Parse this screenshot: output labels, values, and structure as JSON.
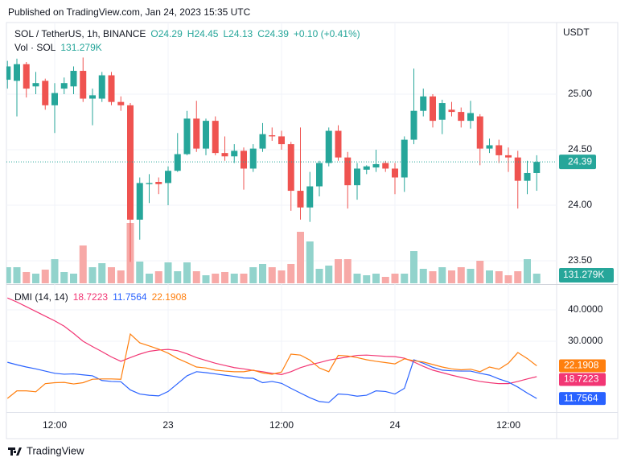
{
  "header": {
    "published": "Published on TradingView.com, Jan 24, 2023 15:35 UTC"
  },
  "footer": {
    "brand": "TradingView"
  },
  "chart_data": [
    {
      "type": "candlestick",
      "title": "SOL / TetherUS, 1h, BINANCE",
      "legend_values": [
        "O24.29",
        "H24.45",
        "L24.13",
        "C24.39",
        "+0.10 (+0.41%)"
      ],
      "y_unit": "USDT",
      "up_color": "#26a69a",
      "down_color": "#ef5350",
      "categories": [
        null,
        null,
        null,
        null,
        null,
        "12:00",
        null,
        null,
        null,
        null,
        null,
        null,
        null,
        null,
        null,
        null,
        null,
        "23",
        null,
        null,
        null,
        null,
        null,
        null,
        null,
        null,
        null,
        null,
        null,
        "12:00",
        null,
        null,
        null,
        null,
        null,
        null,
        null,
        null,
        null,
        null,
        null,
        "24",
        null,
        null,
        null,
        null,
        null,
        null,
        null,
        null,
        null,
        null,
        null,
        "12:00",
        null,
        null,
        null
      ],
      "open": [
        25.13,
        25.12,
        25.27,
        25.07,
        25.12,
        24.9,
        25.05,
        25.07,
        25.21,
        24.96,
        24.96,
        25.17,
        24.93,
        24.9,
        23.87,
        24.19,
        24.21,
        24.2,
        24.31,
        24.46,
        24.78,
        24.51,
        24.76,
        24.47,
        24.44,
        24.49,
        24.33,
        24.51,
        24.63,
        24.62,
        24.55,
        24.13,
        23.98,
        24.17,
        24.38,
        24.67,
        24.43,
        24.18,
        24.32,
        24.34,
        24.38,
        24.33,
        24.25,
        24.59,
        24.85,
        24.98,
        24.77,
        24.86,
        24.84,
        24.76,
        24.8,
        24.51,
        24.54,
        24.45,
        24.43,
        24.22,
        24.29
      ],
      "high": [
        25.3,
        25.32,
        25.29,
        25.2,
        25.14,
        25.1,
        25.15,
        25.25,
        25.33,
        25.05,
        25.2,
        25.2,
        24.98,
        24.92,
        24.25,
        24.28,
        24.25,
        24.35,
        24.65,
        24.85,
        24.94,
        24.78,
        24.8,
        24.62,
        24.55,
        24.52,
        24.55,
        24.74,
        24.7,
        24.67,
        24.57,
        24.7,
        24.3,
        24.4,
        24.7,
        24.72,
        24.48,
        24.38,
        24.36,
        24.5,
        24.4,
        24.38,
        24.62,
        25.23,
        25.05,
        25.0,
        24.95,
        24.93,
        24.88,
        24.94,
        24.82,
        24.6,
        24.59,
        24.52,
        24.49,
        24.4,
        24.45
      ],
      "low": [
        25.05,
        24.8,
        24.97,
        25.0,
        24.86,
        24.65,
        25.0,
        25.0,
        24.93,
        24.72,
        24.93,
        24.9,
        24.85,
        23.49,
        23.69,
        24.02,
        24.1,
        24.0,
        24.3,
        24.45,
        24.48,
        24.45,
        24.45,
        24.4,
        24.38,
        24.14,
        24.3,
        24.48,
        24.58,
        24.5,
        23.95,
        23.87,
        23.85,
        24.08,
        24.35,
        24.4,
        23.97,
        24.05,
        24.28,
        24.3,
        24.3,
        24.1,
        24.12,
        24.55,
        24.8,
        24.7,
        24.64,
        24.8,
        24.7,
        24.69,
        24.36,
        24.47,
        24.38,
        24.3,
        23.97,
        24.1,
        24.13
      ],
      "close": [
        25.25,
        25.27,
        25.05,
        25.1,
        24.9,
        25.01,
        25.1,
        25.21,
        24.96,
        24.99,
        25.17,
        24.93,
        24.9,
        23.87,
        24.2,
        24.2,
        24.19,
        24.31,
        24.46,
        24.78,
        24.51,
        24.76,
        24.47,
        24.44,
        24.49,
        24.33,
        24.51,
        24.64,
        24.62,
        24.55,
        24.13,
        23.98,
        24.17,
        24.38,
        24.67,
        24.43,
        24.18,
        24.33,
        24.35,
        24.37,
        24.33,
        24.25,
        24.59,
        24.85,
        24.98,
        24.76,
        24.92,
        24.84,
        24.76,
        24.83,
        24.51,
        24.54,
        24.45,
        24.43,
        24.22,
        24.29,
        24.39
      ],
      "ylim": [
        23.297,
        25.645
      ],
      "yticks": [
        {
          "value": 25,
          "label": "25.00"
        },
        {
          "value": 24.5,
          "label": "24.50"
        },
        {
          "value": 24,
          "label": "24.00"
        },
        {
          "value": 23.5,
          "label": "23.50"
        }
      ],
      "grid": true,
      "volume": {
        "name": "Vol · SOL",
        "last_value_label": "131.279K",
        "up_color": "#92d3cc",
        "down_color": "#f7a9a7",
        "values": [
          218800,
          218800,
          153200,
          131300,
          186000,
          328200,
          153200,
          131300,
          514200,
          218800,
          273500,
          218800,
          175000,
          820500,
          295400,
          131300,
          164100,
          284400,
          164100,
          284400,
          164100,
          109400,
          131300,
          153200,
          131300,
          131300,
          218800,
          262600,
          218800,
          175000,
          262600,
          700200,
          568900,
          196900,
          240700,
          328200,
          328200,
          131300,
          109400,
          131300,
          87500,
          131300,
          131300,
          437600,
          196900,
          164100,
          218800,
          175000,
          218800,
          196900,
          306300,
          175000,
          164100,
          109400,
          164100,
          328200,
          131279
        ]
      }
    },
    {
      "type": "line",
      "title": "DMI (14, 14)",
      "ylim": [
        7.44,
        47.69
      ],
      "yticks": [
        {
          "value": 40,
          "label": "40.0000"
        },
        {
          "value": 30,
          "label": "30.0000"
        }
      ],
      "series": [
        {
          "color": "#f23674",
          "values": [
            43.8,
            42.5,
            41,
            39.5,
            38,
            36.5,
            34.8,
            32.5,
            30,
            28.3,
            26.7,
            25,
            23.6,
            24.8,
            25.9,
            26.8,
            27.2,
            27.4,
            27,
            26,
            24.8,
            23.9,
            23,
            22.3,
            21.6,
            21.2,
            20.7,
            20.3,
            19.8,
            19.4,
            20.3,
            21.6,
            22.5,
            23.2,
            24,
            24.5,
            25,
            25.5,
            25.6,
            25.4,
            25.2,
            25.1,
            24.6,
            23.4,
            22,
            20.8,
            20,
            19.2,
            18.5,
            17.8,
            17.2,
            16.8,
            16.5,
            16.5,
            17.2,
            18,
            18.7223
          ]
        },
        {
          "color": "#2962ff",
          "values": [
            23.3,
            22.5,
            21.8,
            21.2,
            20.5,
            19.8,
            19.5,
            19.6,
            19.3,
            19,
            17.5,
            17.2,
            17.1,
            14.5,
            13.2,
            12.8,
            12.6,
            14,
            16.5,
            19,
            20.3,
            20,
            19.6,
            19.2,
            18.8,
            18.3,
            18.2,
            16.8,
            17.2,
            16.6,
            15,
            13.5,
            12,
            10.8,
            10.5,
            13.2,
            13,
            12.5,
            12.8,
            14.2,
            14,
            13.2,
            15,
            24.1,
            23,
            21.7,
            20.8,
            20.6,
            20.5,
            20.5,
            19.8,
            19.2,
            18,
            17,
            15.4,
            13.5,
            11.7564
          ]
        },
        {
          "color": "#ff7f0e",
          "values": [
            11.8,
            14.2,
            14.2,
            13.9,
            16.5,
            16.8,
            16.9,
            16.4,
            16.8,
            17.9,
            18,
            18,
            17.9,
            32.3,
            29.5,
            28.5,
            27.5,
            26.2,
            24.5,
            23.2,
            21.8,
            21.5,
            20.8,
            20.5,
            20.3,
            20.3,
            20.8,
            19.9,
            19.5,
            20.2,
            25.9,
            25.6,
            24,
            21.5,
            20.3,
            25.5,
            25.3,
            24.8,
            24.1,
            23.6,
            23.2,
            22.8,
            24.4,
            23.8,
            23.4,
            22.6,
            21.8,
            21.2,
            20.9,
            21.1,
            20.3,
            21.8,
            21.1,
            23,
            26.4,
            24.5,
            22.1908
          ]
        }
      ]
    }
  ]
}
